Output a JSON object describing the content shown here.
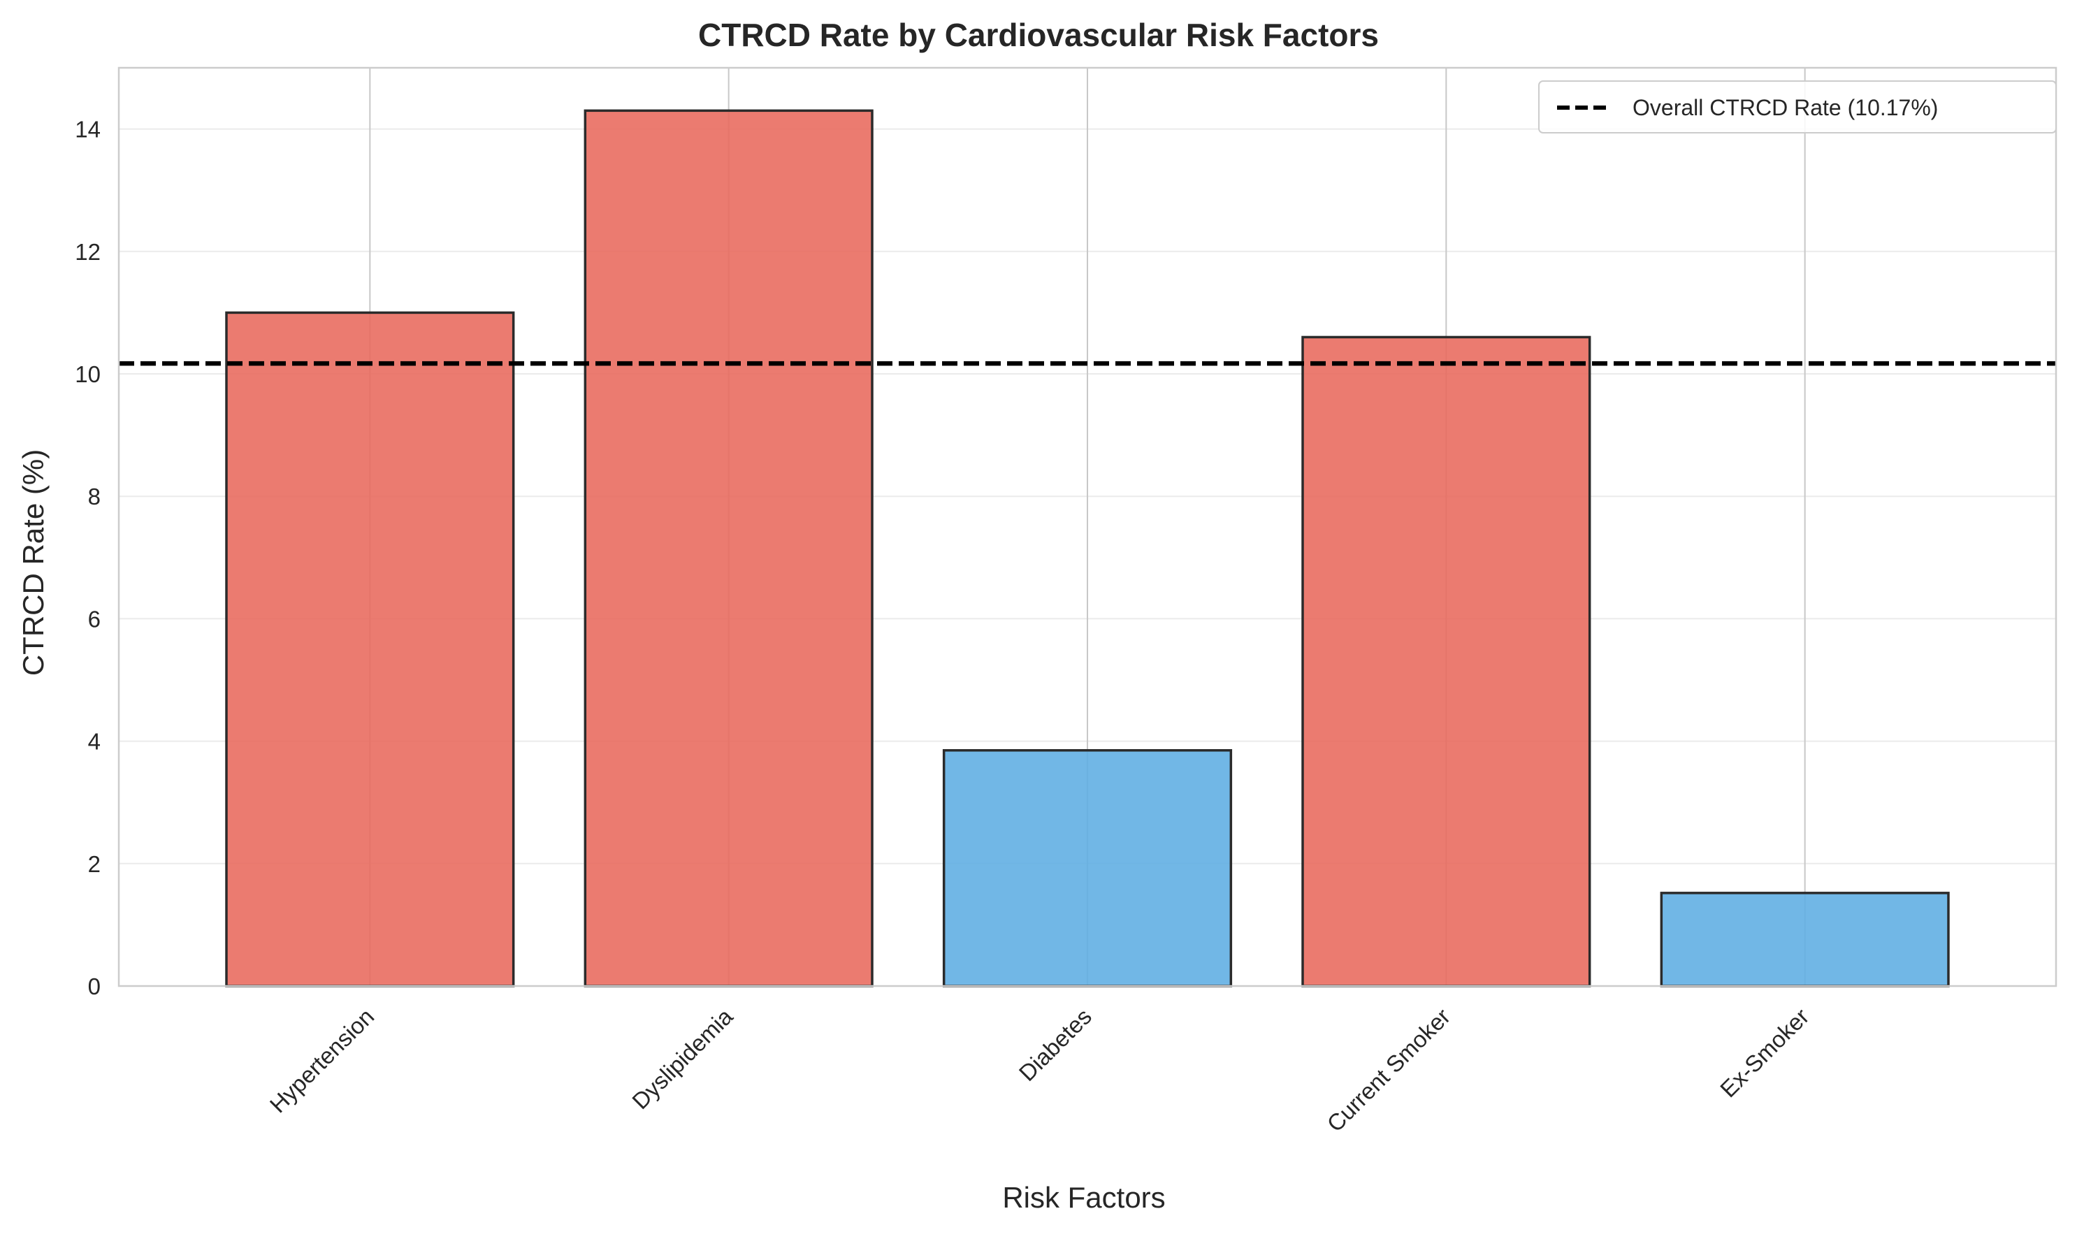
{
  "chart_data": {
    "type": "bar",
    "title": "CTRCD Rate by Cardiovascular Risk Factors",
    "xlabel": "Risk Factors",
    "ylabel": "CTRCD Rate (%)",
    "categories": [
      "Hypertension",
      "Dyslipidemia",
      "Diabetes",
      "Current Smoker",
      "Ex-Smoker"
    ],
    "values": [
      11.0,
      14.3,
      3.85,
      10.6,
      1.52
    ],
    "bar_colors": [
      "#e8695c",
      "#e8695c",
      "#5dade2",
      "#e8695c",
      "#5dade2"
    ],
    "ylim": [
      0,
      15
    ],
    "yticks": [
      0,
      2,
      4,
      6,
      8,
      10,
      12,
      14
    ],
    "reference_line": {
      "value": 10.17,
      "label": "Overall CTRCD Rate (10.17%)",
      "style": "dashed",
      "color": "#000000"
    },
    "legend_position": "top-right",
    "grid": true
  }
}
